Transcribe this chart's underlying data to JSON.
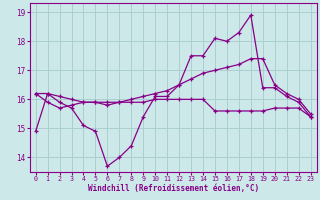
{
  "xlabel": "Windchill (Refroidissement éolien,°C)",
  "background_color": "#cce8e8",
  "grid_color": "#aacfcf",
  "line_color": "#880088",
  "xlim": [
    -0.5,
    23.5
  ],
  "ylim": [
    13.5,
    19.3
  ],
  "yticks": [
    14,
    15,
    16,
    17,
    18,
    19
  ],
  "xticks": [
    0,
    1,
    2,
    3,
    4,
    5,
    6,
    7,
    8,
    9,
    10,
    11,
    12,
    13,
    14,
    15,
    16,
    17,
    18,
    19,
    20,
    21,
    22,
    23
  ],
  "line1_x": [
    0,
    1,
    2,
    3,
    4,
    5,
    6,
    7,
    8,
    9,
    10,
    11,
    12,
    13,
    14,
    15,
    16,
    17,
    18,
    19,
    20,
    21,
    22,
    23
  ],
  "line1_y": [
    14.9,
    16.2,
    15.9,
    15.7,
    15.1,
    14.9,
    13.7,
    14.0,
    14.4,
    15.4,
    16.1,
    16.1,
    16.5,
    17.5,
    17.5,
    18.1,
    18.0,
    18.3,
    18.9,
    16.4,
    16.4,
    16.1,
    15.9,
    15.4
  ],
  "line2_x": [
    0,
    1,
    2,
    3,
    4,
    5,
    6,
    7,
    8,
    9,
    10,
    11,
    12,
    13,
    14,
    15,
    16,
    17,
    18,
    19,
    20,
    21,
    22,
    23
  ],
  "line2_y": [
    16.2,
    16.2,
    16.1,
    16.0,
    15.9,
    15.9,
    15.8,
    15.9,
    16.0,
    16.1,
    16.2,
    16.3,
    16.5,
    16.7,
    16.9,
    17.0,
    17.1,
    17.2,
    17.4,
    17.4,
    16.5,
    16.2,
    16.0,
    15.5
  ],
  "line3_x": [
    0,
    1,
    2,
    3,
    4,
    5,
    6,
    7,
    8,
    9,
    10,
    11,
    12,
    13,
    14,
    15,
    16,
    17,
    18,
    19,
    20,
    21,
    22,
    23
  ],
  "line3_y": [
    16.2,
    15.9,
    15.7,
    15.8,
    15.9,
    15.9,
    15.9,
    15.9,
    15.9,
    15.9,
    16.0,
    16.0,
    16.0,
    16.0,
    16.0,
    15.6,
    15.6,
    15.6,
    15.6,
    15.6,
    15.7,
    15.7,
    15.7,
    15.4
  ]
}
